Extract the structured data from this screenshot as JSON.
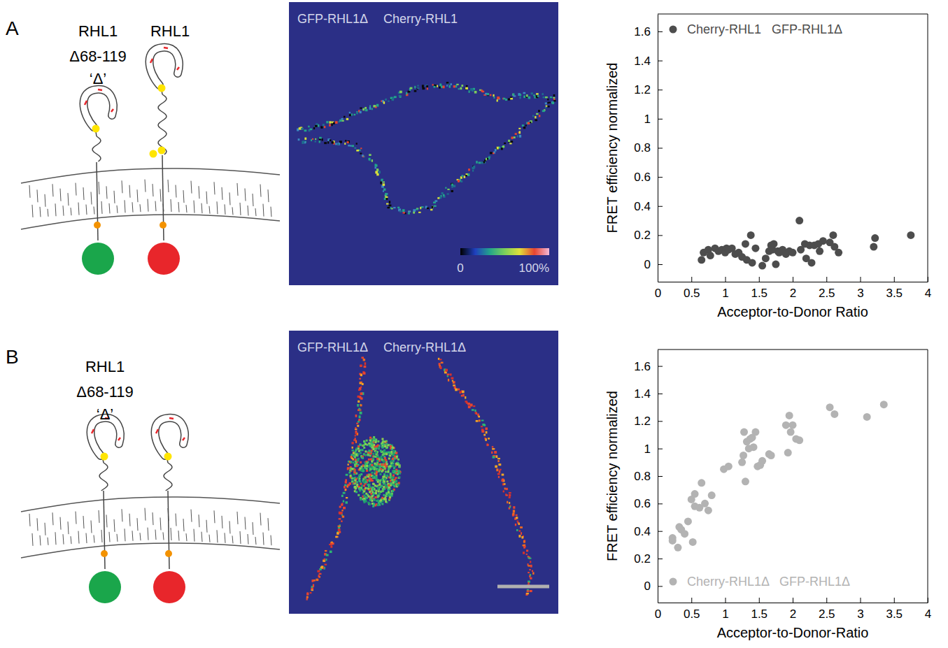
{
  "panels": [
    {
      "letter": "A",
      "diagram": {
        "labels": [
          "RHL1",
          "Δ68-119",
          "‘Δ’",
          "RHL1"
        ]
      },
      "image": {
        "labels": [
          "GFP-RHL1Δ",
          "Cherry-RHL1"
        ],
        "colorbar": {
          "range": [
            0,
            100
          ],
          "ticks": [
            0,
            {
              "value": 100,
              "label": "100%"
            }
          ]
        }
      }
    },
    {
      "letter": "B",
      "diagram": {
        "labels": [
          "RHL1",
          "Δ68-119",
          "‘Δ’"
        ]
      },
      "image": {
        "labels": [
          "GFP-RHL1Δ",
          "Cherry-RHL1Δ"
        ]
      }
    }
  ],
  "chart_data": [
    {
      "type": "scatter",
      "x_label": "Acceptor-to-Donor Ratio",
      "y_label": "FRET efficiency normalized",
      "xlim": [
        0,
        4
      ],
      "ylim": [
        -0.12,
        1.72
      ],
      "xticks": [
        0,
        0.5,
        1,
        1.5,
        2,
        2.5,
        3,
        3.5,
        4
      ],
      "yticks": [
        0,
        0.2,
        0.4,
        0.6,
        0.8,
        1,
        1.2,
        1.4,
        1.6
      ],
      "legend": "top-left",
      "series": [
        {
          "name": "Cherry-RHL1   GFP-RHL1Δ",
          "color": "#4d4d4d",
          "marker": "circle",
          "x": [
            0.65,
            0.68,
            0.75,
            0.78,
            0.85,
            0.9,
            0.95,
            1.0,
            1.02,
            1.05,
            1.1,
            1.15,
            1.2,
            1.25,
            1.3,
            1.32,
            1.38,
            1.4,
            1.45,
            1.55,
            1.6,
            1.65,
            1.68,
            1.7,
            1.72,
            1.75,
            1.78,
            1.8,
            1.85,
            1.9,
            1.95,
            2.0,
            2.1,
            2.12,
            2.18,
            2.2,
            2.25,
            2.28,
            2.32,
            2.38,
            2.4,
            2.45,
            2.55,
            2.6,
            2.62,
            2.68,
            3.2,
            3.22,
            3.75
          ],
          "values": [
            0.03,
            0.08,
            0.1,
            0.06,
            0.11,
            0.09,
            0.1,
            0.08,
            0.11,
            0.1,
            0.11,
            0.07,
            0.08,
            0.05,
            0.14,
            0.03,
            0.2,
            0.01,
            0.11,
            -0.01,
            0.04,
            0.09,
            0.13,
            0.1,
            0.14,
            0.0,
            0.09,
            0.08,
            0.1,
            0.07,
            0.09,
            0.08,
            0.3,
            0.1,
            0.14,
            0.04,
            0.13,
            0.01,
            0.13,
            0.14,
            0.09,
            0.16,
            0.15,
            0.2,
            0.12,
            0.08,
            0.12,
            0.18,
            0.2
          ]
        }
      ]
    },
    {
      "type": "scatter",
      "x_label": "Acceptor-to-Donor-Ratio",
      "y_label": "FRET efficiency normalized",
      "xlim": [
        0,
        4
      ],
      "ylim": [
        -0.12,
        1.72
      ],
      "xticks": [
        0,
        0.5,
        1,
        1.5,
        2,
        2.5,
        3,
        3.5,
        4
      ],
      "yticks": [
        0,
        0.2,
        0.4,
        0.6,
        0.8,
        1,
        1.2,
        1.4,
        1.6
      ],
      "legend": "bottom-left",
      "series": [
        {
          "name": "Cherry-RHL1Δ   GFP-RHL1Δ",
          "color": "#b3b3b3",
          "marker": "circle",
          "x": [
            0.22,
            0.22,
            0.3,
            0.32,
            0.35,
            0.4,
            0.45,
            0.5,
            0.52,
            0.55,
            0.55,
            0.62,
            0.65,
            0.7,
            0.75,
            0.8,
            0.98,
            1.05,
            1.25,
            1.27,
            1.28,
            1.3,
            1.32,
            1.35,
            1.37,
            1.4,
            1.42,
            1.45,
            1.48,
            1.52,
            1.55,
            1.65,
            1.68,
            1.9,
            1.93,
            1.95,
            1.97,
            2.0,
            2.05,
            2.1,
            2.55,
            2.62,
            3.1,
            3.35
          ],
          "values": [
            0.33,
            0.35,
            0.28,
            0.43,
            0.41,
            0.38,
            0.47,
            0.63,
            0.32,
            0.58,
            0.67,
            0.57,
            0.75,
            0.6,
            0.55,
            0.66,
            0.85,
            0.87,
            0.9,
            0.95,
            1.12,
            0.76,
            1.05,
            1.0,
            1.07,
            1.08,
            1.01,
            1.12,
            0.87,
            0.88,
            0.91,
            0.96,
            0.95,
            1.17,
            0.97,
            1.24,
            1.12,
            1.17,
            1.07,
            1.06,
            1.3,
            1.25,
            1.23,
            1.32
          ]
        }
      ]
    }
  ]
}
